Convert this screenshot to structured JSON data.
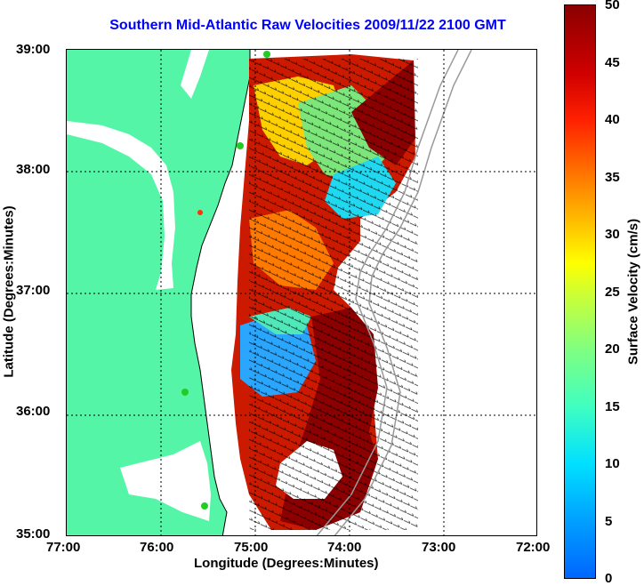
{
  "title": "Southern Mid-Atlantic Raw Velocities 2009/11/22 2100 GMT",
  "x_axis": {
    "label": "Longitude (Degrees:Minutes)",
    "ticks": [
      "77:00",
      "76:00",
      "75:00",
      "74:00",
      "73:00",
      "72:00"
    ]
  },
  "y_axis": {
    "label": "Latitude (Degrees:Minutes)",
    "ticks": [
      "39:00",
      "38:00",
      "37:00",
      "36:00",
      "35:00"
    ]
  },
  "colorbar": {
    "label": "Surface Velocity (cm/s)",
    "ticks": [
      "50",
      "45",
      "40",
      "35",
      "30",
      "25",
      "20",
      "15",
      "10",
      "5",
      "0"
    ]
  },
  "colors": {
    "land": "#55f5a8",
    "ocean": "#ffffff",
    "title": "#0000ff",
    "station": "#22cc22"
  }
}
